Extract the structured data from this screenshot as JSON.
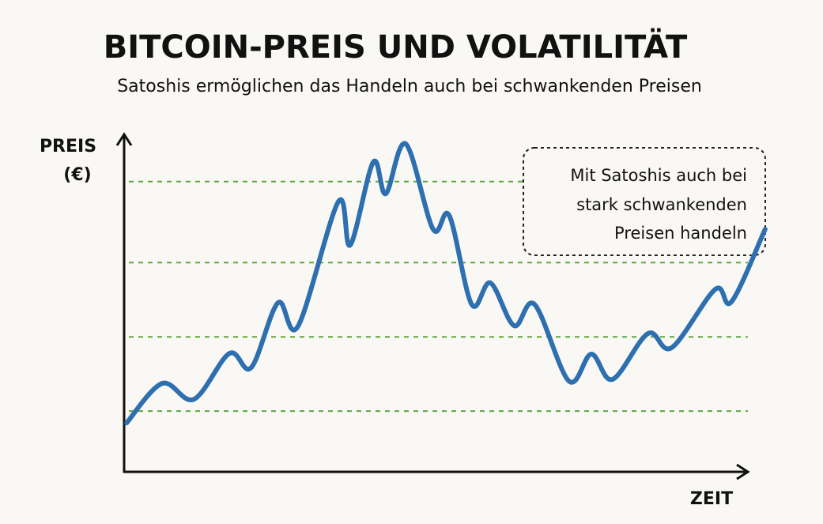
{
  "chart_data": {
    "type": "line",
    "title": "BITCOIN-PREIS UND VOLATILITÄT",
    "subtitle": "Satoshis ermöglichen das Handeln auch bei schwankenden Preisen",
    "y_label": [
      "PREIS",
      "(€)"
    ],
    "x_label": "ZEIT",
    "annotation": [
      "Mit Satoshis auch bei",
      "stark schwankenden",
      "Preisen handeln"
    ],
    "x": [
      0.4,
      6.1,
      11.2,
      16.9,
      20.4,
      24.7,
      27.9,
      34.4,
      36.3,
      40.0,
      42.0,
      45.2,
      49.6,
      52.2,
      55.8,
      58.8,
      62.6,
      65.9,
      71.4,
      75.0,
      78.4,
      84.1,
      87.9,
      94.9,
      97.5,
      102.9
    ],
    "series": [
      {
        "color": "#2e6fb0",
        "values": [
          14.5,
          26.2,
          21.5,
          35.1,
          30.9,
          50.1,
          43.1,
          80.1,
          67.2,
          91.8,
          82.4,
          97.2,
          71.9,
          75.9,
          49.6,
          56.0,
          43.3,
          49.6,
          26.9,
          34.9,
          27.4,
          41.0,
          36.8,
          54.1,
          50.4,
          71.9
        ]
      }
    ],
    "xlim": [
      0,
      103
    ],
    "ylim": [
      0,
      100
    ],
    "yticks": [
      18,
      40,
      62,
      86
    ],
    "grid": true,
    "grid_color": "#5aa83a"
  }
}
